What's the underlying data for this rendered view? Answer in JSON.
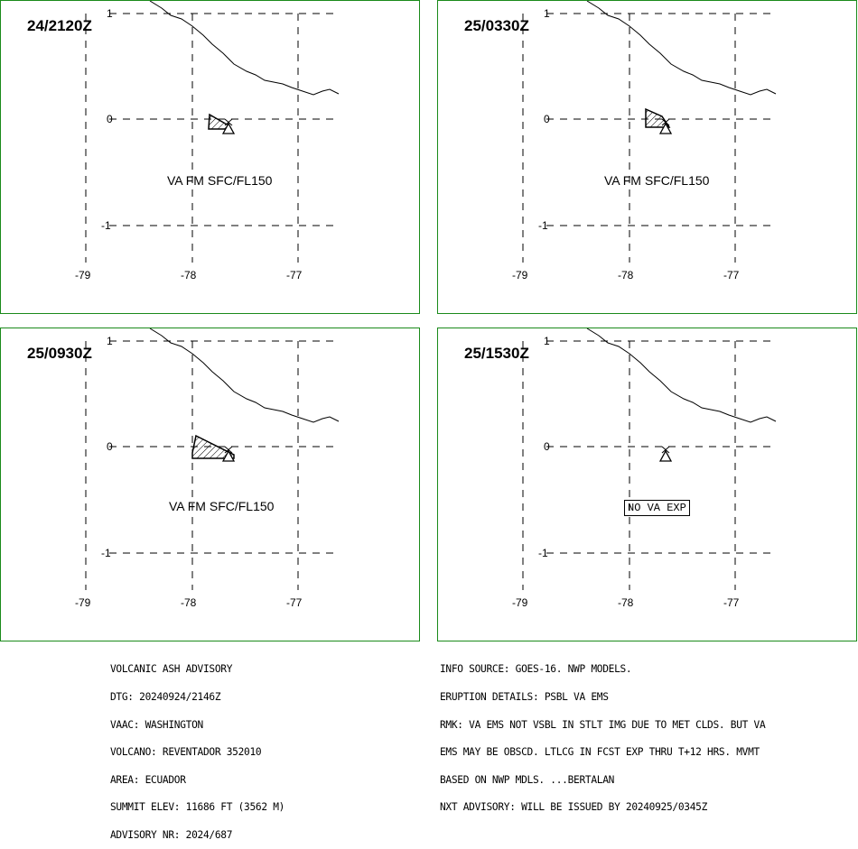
{
  "panels": [
    {
      "dtg": "24/2120Z",
      "status_text": "VA FM SFC/FL150",
      "has_ash": true
    },
    {
      "dtg": "25/0330Z",
      "status_text": "VA FM SFC/FL150",
      "has_ash": true
    },
    {
      "dtg": "25/0930Z",
      "status_text": "VA FM SFC/FL150",
      "has_ash": true
    },
    {
      "dtg": "25/1530Z",
      "status_text": "NO VA EXP",
      "has_ash": false
    }
  ],
  "axes": {
    "lat_labels": [
      "1",
      "0",
      "-1"
    ],
    "lon_labels": [
      "-79",
      "-78",
      "-77"
    ]
  },
  "advisory_left": [
    "VOLCANIC ASH ADVISORY",
    "DTG: 20240924/2146Z",
    "VAAC: WASHINGTON",
    "VOLCANO: REVENTADOR 352010",
    "AREA: ECUADOR",
    "SUMMIT ELEV: 11686 FT (3562 M)",
    "ADVISORY NR: 2024/687"
  ],
  "advisory_right": [
    "INFO SOURCE: GOES-16. NWP MODELS.",
    "ERUPTION DETAILS: PSBL VA EMS",
    "RMK: VA EMS NOT VSBL IN STLT IMG DUE TO MET CLDS. BUT VA",
    "EMS MAY BE OBSCD. LTLCG IN FCST EXP THRU T+12 HRS. MVMT",
    "BASED ON NWP MDLS. ...BERTALAN",
    "NXT ADVISORY: WILL BE ISSUED BY 20240925/0345Z"
  ],
  "colors": {
    "frame": "#1a8a1a",
    "lines": "#000000",
    "background": "#ffffff"
  }
}
